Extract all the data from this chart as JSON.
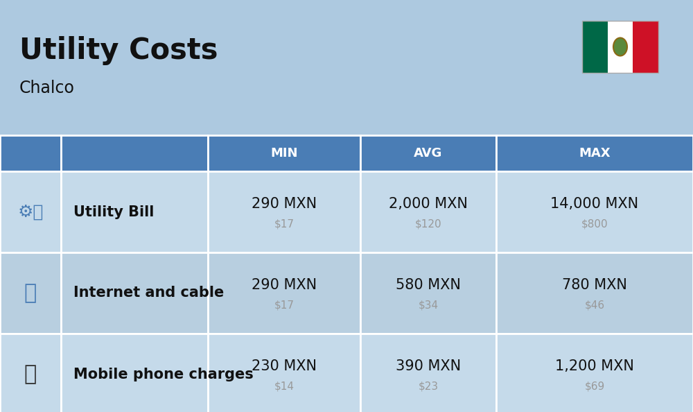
{
  "title": "Utility Costs",
  "subtitle": "Chalco",
  "background_color": "#adc9e0",
  "header_bg_color": "#4a7db5",
  "header_text_color": "#ffffff",
  "row_bg_color_1": "#c5daea",
  "row_bg_color_2": "#b8cfe0",
  "col_header_labels": [
    "MIN",
    "AVG",
    "MAX"
  ],
  "rows": [
    {
      "label": "Utility Bill",
      "min_mxn": "290 MXN",
      "min_usd": "$17",
      "avg_mxn": "2,000 MXN",
      "avg_usd": "$120",
      "max_mxn": "14,000 MXN",
      "max_usd": "$800"
    },
    {
      "label": "Internet and cable",
      "min_mxn": "290 MXN",
      "min_usd": "$17",
      "avg_mxn": "580 MXN",
      "avg_usd": "$34",
      "max_mxn": "780 MXN",
      "max_usd": "$46"
    },
    {
      "label": "Mobile phone charges",
      "min_mxn": "230 MXN",
      "min_usd": "$14",
      "avg_mxn": "390 MXN",
      "avg_usd": "$23",
      "max_mxn": "1,200 MXN",
      "max_usd": "$69"
    }
  ],
  "title_fontsize": 30,
  "subtitle_fontsize": 17,
  "header_fontsize": 13,
  "cell_mxn_fontsize": 15,
  "cell_usd_fontsize": 11,
  "label_fontsize": 15,
  "usd_color": "#999999",
  "text_color": "#111111",
  "flag_colors": [
    "#006847",
    "#ffffff",
    "#ce1126"
  ]
}
